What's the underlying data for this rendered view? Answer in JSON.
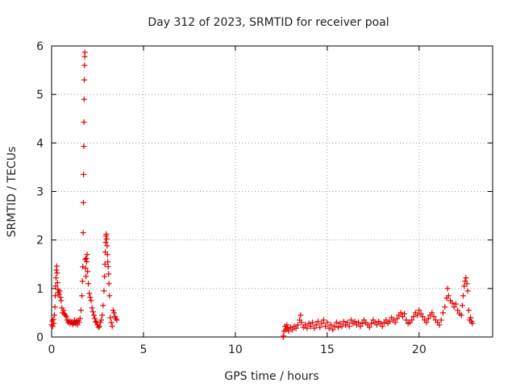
{
  "chart_data": {
    "type": "scatter",
    "title": "Day 312 of 2023, SRMTID for receiver poal",
    "xlabel": "GPS time / hours",
    "ylabel": "SRMTID / TECUs",
    "xlim": [
      0,
      24
    ],
    "ylim": [
      0,
      6
    ],
    "xticks": [
      0,
      5,
      10,
      15,
      20
    ],
    "yticks": [
      0,
      1,
      2,
      3,
      4,
      5,
      6
    ],
    "xtick_labels": [
      "0",
      "5",
      "10",
      "15",
      "20"
    ],
    "ytick_labels": [
      "0",
      "1",
      "2",
      "3",
      "4",
      "5",
      "6"
    ],
    "grid": true,
    "marker": "+",
    "color": "#e00000",
    "series": [
      {
        "name": "SRMTID",
        "points": [
          [
            0.0,
            0.25
          ],
          [
            0.03,
            0.33
          ],
          [
            0.06,
            0.22
          ],
          [
            0.09,
            0.36
          ],
          [
            0.12,
            0.28
          ],
          [
            0.15,
            0.45
          ],
          [
            0.18,
            0.62
          ],
          [
            0.2,
            0.85
          ],
          [
            0.22,
            1.05
          ],
          [
            0.24,
            1.22
          ],
          [
            0.26,
            1.38
          ],
          [
            0.28,
            1.46
          ],
          [
            0.3,
            1.32
          ],
          [
            0.32,
            1.12
          ],
          [
            0.34,
            0.98
          ],
          [
            0.36,
            0.92
          ],
          [
            0.4,
            0.88
          ],
          [
            0.44,
            0.95
          ],
          [
            0.48,
            0.82
          ],
          [
            0.52,
            0.75
          ],
          [
            0.56,
            0.6
          ],
          [
            0.6,
            0.5
          ],
          [
            0.65,
            0.55
          ],
          [
            0.7,
            0.48
          ],
          [
            0.75,
            0.45
          ],
          [
            0.8,
            0.42
          ],
          [
            0.85,
            0.35
          ],
          [
            0.9,
            0.3
          ],
          [
            0.95,
            0.33
          ],
          [
            1.0,
            0.28
          ],
          [
            1.05,
            0.32
          ],
          [
            1.1,
            0.3
          ],
          [
            1.15,
            0.26
          ],
          [
            1.2,
            0.29
          ],
          [
            1.25,
            0.35
          ],
          [
            1.3,
            0.28
          ],
          [
            1.35,
            0.32
          ],
          [
            1.4,
            0.25
          ],
          [
            1.45,
            0.34
          ],
          [
            1.5,
            0.3
          ],
          [
            1.55,
            0.38
          ],
          [
            1.6,
            0.55
          ],
          [
            1.65,
            0.85
          ],
          [
            1.68,
            1.15
          ],
          [
            1.7,
            1.45
          ],
          [
            1.72,
            2.15
          ],
          [
            1.73,
            2.77
          ],
          [
            1.74,
            3.35
          ],
          [
            1.75,
            3.93
          ],
          [
            1.76,
            4.43
          ],
          [
            1.77,
            4.9
          ],
          [
            1.78,
            5.3
          ],
          [
            1.79,
            5.6
          ],
          [
            1.8,
            5.78
          ],
          [
            1.81,
            5.87
          ],
          [
            1.83,
            1.6
          ],
          [
            1.85,
            1.42
          ],
          [
            1.87,
            1.25
          ],
          [
            1.89,
            1.62
          ],
          [
            1.91,
            1.55
          ],
          [
            1.93,
            1.7
          ],
          [
            1.96,
            1.35
          ],
          [
            2.0,
            1.1
          ],
          [
            2.05,
            0.9
          ],
          [
            2.1,
            0.82
          ],
          [
            2.15,
            0.75
          ],
          [
            2.2,
            0.6
          ],
          [
            2.25,
            0.52
          ],
          [
            2.3,
            0.45
          ],
          [
            2.35,
            0.38
          ],
          [
            2.4,
            0.32
          ],
          [
            2.45,
            0.3
          ],
          [
            2.5,
            0.25
          ],
          [
            2.55,
            0.2
          ],
          [
            2.6,
            0.22
          ],
          [
            2.65,
            0.3
          ],
          [
            2.7,
            0.35
          ],
          [
            2.75,
            0.45
          ],
          [
            2.8,
            0.65
          ],
          [
            2.85,
            0.95
          ],
          [
            2.88,
            1.25
          ],
          [
            2.9,
            1.5
          ],
          [
            2.92,
            1.75
          ],
          [
            2.94,
            1.95
          ],
          [
            2.96,
            2.08
          ],
          [
            2.98,
            2.12
          ],
          [
            3.0,
            2.02
          ],
          [
            3.02,
            1.88
          ],
          [
            3.04,
            1.7
          ],
          [
            3.06,
            1.55
          ],
          [
            3.08,
            1.45
          ],
          [
            3.1,
            1.3
          ],
          [
            3.12,
            1.1
          ],
          [
            3.15,
            0.85
          ],
          [
            3.2,
            0.4
          ],
          [
            3.25,
            0.3
          ],
          [
            3.3,
            0.22
          ],
          [
            3.35,
            0.55
          ],
          [
            3.4,
            0.5
          ],
          [
            3.45,
            0.42
          ],
          [
            3.5,
            0.38
          ],
          [
            3.55,
            0.35
          ],
          [
            12.6,
            0.0
          ],
          [
            12.62,
            0.02
          ],
          [
            12.65,
            0.12
          ],
          [
            12.7,
            0.22
          ],
          [
            12.75,
            0.15
          ],
          [
            12.8,
            0.25
          ],
          [
            12.85,
            0.18
          ],
          [
            12.9,
            0.12
          ],
          [
            13.0,
            0.2
          ],
          [
            13.1,
            0.15
          ],
          [
            13.2,
            0.22
          ],
          [
            13.3,
            0.18
          ],
          [
            13.4,
            0.25
          ],
          [
            13.5,
            0.35
          ],
          [
            13.55,
            0.45
          ],
          [
            13.6,
            0.3
          ],
          [
            13.7,
            0.2
          ],
          [
            13.8,
            0.25
          ],
          [
            13.9,
            0.18
          ],
          [
            14.0,
            0.28
          ],
          [
            14.1,
            0.22
          ],
          [
            14.2,
            0.3
          ],
          [
            14.3,
            0.18
          ],
          [
            14.4,
            0.25
          ],
          [
            14.5,
            0.32
          ],
          [
            14.6,
            0.2
          ],
          [
            14.7,
            0.28
          ],
          [
            14.8,
            0.35
          ],
          [
            14.9,
            0.22
          ],
          [
            15.0,
            0.3
          ],
          [
            15.1,
            0.18
          ],
          [
            15.2,
            0.25
          ],
          [
            15.3,
            0.15
          ],
          [
            15.4,
            0.22
          ],
          [
            15.5,
            0.3
          ],
          [
            15.6,
            0.2
          ],
          [
            15.7,
            0.28
          ],
          [
            15.8,
            0.22
          ],
          [
            15.9,
            0.32
          ],
          [
            16.0,
            0.25
          ],
          [
            16.1,
            0.3
          ],
          [
            16.2,
            0.22
          ],
          [
            16.3,
            0.35
          ],
          [
            16.4,
            0.28
          ],
          [
            16.5,
            0.32
          ],
          [
            16.6,
            0.25
          ],
          [
            16.7,
            0.3
          ],
          [
            16.8,
            0.22
          ],
          [
            16.9,
            0.28
          ],
          [
            17.0,
            0.35
          ],
          [
            17.1,
            0.3
          ],
          [
            17.2,
            0.25
          ],
          [
            17.3,
            0.2
          ],
          [
            17.4,
            0.28
          ],
          [
            17.5,
            0.35
          ],
          [
            17.6,
            0.3
          ],
          [
            17.7,
            0.25
          ],
          [
            17.8,
            0.32
          ],
          [
            17.9,
            0.28
          ],
          [
            18.0,
            0.22
          ],
          [
            18.1,
            0.3
          ],
          [
            18.2,
            0.35
          ],
          [
            18.3,
            0.28
          ],
          [
            18.4,
            0.32
          ],
          [
            18.5,
            0.4
          ],
          [
            18.6,
            0.35
          ],
          [
            18.7,
            0.3
          ],
          [
            18.8,
            0.38
          ],
          [
            18.9,
            0.45
          ],
          [
            19.0,
            0.5
          ],
          [
            19.1,
            0.42
          ],
          [
            19.2,
            0.48
          ],
          [
            19.3,
            0.35
          ],
          [
            19.4,
            0.28
          ],
          [
            19.5,
            0.3
          ],
          [
            19.6,
            0.35
          ],
          [
            19.7,
            0.42
          ],
          [
            19.8,
            0.5
          ],
          [
            19.9,
            0.45
          ],
          [
            20.0,
            0.55
          ],
          [
            20.1,
            0.48
          ],
          [
            20.2,
            0.42
          ],
          [
            20.3,
            0.35
          ],
          [
            20.4,
            0.3
          ],
          [
            20.5,
            0.38
          ],
          [
            20.6,
            0.45
          ],
          [
            20.7,
            0.5
          ],
          [
            20.8,
            0.42
          ],
          [
            20.9,
            0.35
          ],
          [
            21.0,
            0.3
          ],
          [
            21.1,
            0.25
          ],
          [
            21.2,
            0.35
          ],
          [
            21.3,
            0.5
          ],
          [
            21.4,
            0.62
          ],
          [
            21.5,
            0.8
          ],
          [
            21.55,
            1.0
          ],
          [
            21.6,
            0.85
          ],
          [
            21.7,
            0.75
          ],
          [
            21.8,
            0.7
          ],
          [
            21.9,
            0.62
          ],
          [
            22.0,
            0.68
          ],
          [
            22.1,
            0.55
          ],
          [
            22.2,
            0.48
          ],
          [
            22.3,
            0.45
          ],
          [
            22.35,
            0.65
          ],
          [
            22.4,
            0.85
          ],
          [
            22.45,
            1.05
          ],
          [
            22.5,
            1.15
          ],
          [
            22.55,
            1.22
          ],
          [
            22.6,
            1.1
          ],
          [
            22.65,
            0.95
          ],
          [
            22.7,
            0.55
          ],
          [
            22.75,
            0.35
          ],
          [
            22.8,
            0.4
          ],
          [
            22.85,
            0.32
          ],
          [
            22.9,
            0.28
          ]
        ]
      }
    ]
  }
}
